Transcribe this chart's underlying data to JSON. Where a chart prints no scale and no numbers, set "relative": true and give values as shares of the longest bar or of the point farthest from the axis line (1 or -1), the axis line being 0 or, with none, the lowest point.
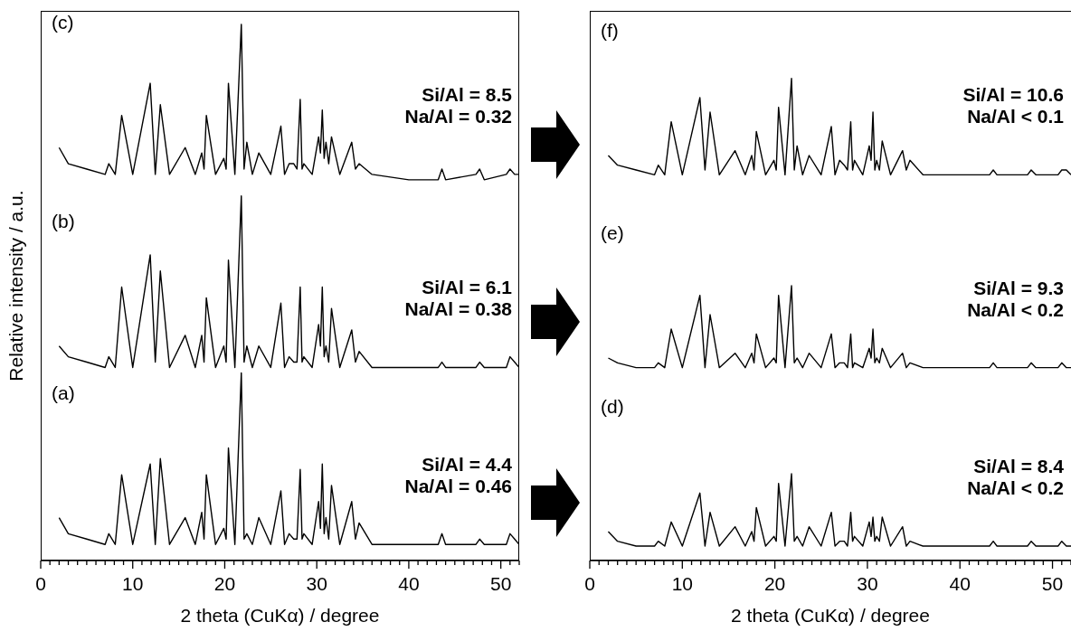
{
  "chart_data": [
    {
      "type": "line",
      "relative": true,
      "xlim": [
        0,
        52
      ],
      "xticks": [
        0,
        {
          "value": 1,
          "label": null
        },
        {
          "value": 2,
          "label": null
        },
        {
          "value": 3,
          "label": null
        },
        {
          "value": 4,
          "label": null
        },
        {
          "value": 5,
          "label": null
        },
        {
          "value": 6,
          "label": null
        },
        {
          "value": 7,
          "label": null
        },
        {
          "value": 8,
          "label": null
        },
        {
          "value": 9,
          "label": null
        },
        10,
        {
          "value": 11,
          "label": null
        },
        {
          "value": 12,
          "label": null
        },
        {
          "value": 13,
          "label": null
        },
        {
          "value": 14,
          "label": null
        },
        {
          "value": 15,
          "label": null
        },
        {
          "value": 16,
          "label": null
        },
        {
          "value": 17,
          "label": null
        },
        {
          "value": 18,
          "label": null
        },
        {
          "value": 19,
          "label": null
        },
        20,
        {
          "value": 21,
          "label": null
        },
        {
          "value": 22,
          "label": null
        },
        {
          "value": 23,
          "label": null
        },
        {
          "value": 24,
          "label": null
        },
        {
          "value": 25,
          "label": null
        },
        {
          "value": 26,
          "label": null
        },
        {
          "value": 27,
          "label": null
        },
        {
          "value": 28,
          "label": null
        },
        {
          "value": 29,
          "label": null
        },
        30,
        {
          "value": 31,
          "label": null
        },
        {
          "value": 32,
          "label": null
        },
        {
          "value": 33,
          "label": null
        },
        {
          "value": 34,
          "label": null
        },
        {
          "value": 35,
          "label": null
        },
        {
          "value": 36,
          "label": null
        },
        {
          "value": 37,
          "label": null
        },
        {
          "value": 38,
          "label": null
        },
        {
          "value": 39,
          "label": null
        },
        40,
        {
          "value": 41,
          "label": null
        },
        {
          "value": 42,
          "label": null
        },
        {
          "value": 43,
          "label": null
        },
        {
          "value": 44,
          "label": null
        },
        {
          "value": 45,
          "label": null
        },
        {
          "value": 46,
          "label": null
        },
        {
          "value": 47,
          "label": null
        },
        {
          "value": 48,
          "label": null
        },
        {
          "value": 49,
          "label": null
        },
        50,
        {
          "value": 51,
          "label": null
        },
        {
          "value": 52,
          "label": null
        }
      ],
      "xlabel": "2 theta (CuKα) / degree",
      "ylabel": "Relative intensity / a.u.",
      "x": [
        2,
        3,
        5,
        7,
        7.4,
        8.1,
        8.8,
        10,
        11.9,
        12.45,
        13.0,
        14,
        15.7,
        16.8,
        17.5,
        17.75,
        18.0,
        19,
        19.9,
        20.15,
        20.4,
        21.1,
        21.8,
        22.1,
        22.4,
        23,
        23.7,
        25,
        26.1,
        26.5,
        27.0,
        27.5,
        27.85,
        28.2,
        28.4,
        28.6,
        29.5,
        30.2,
        30.4,
        30.6,
        30.8,
        31.0,
        31.3,
        31.6,
        32.5,
        33.8,
        34.2,
        34.6,
        36,
        40,
        43.2,
        43.6,
        44,
        47.3,
        47.7,
        48.2,
        50.6,
        51,
        51.5,
        52
      ],
      "series": [
        {
          "color": "#000000",
          "values": [
            0.77,
            0.74,
            0.73,
            0.72,
            0.74,
            0.72,
            0.83,
            0.72,
            0.89,
            0.72,
            0.85,
            0.72,
            0.77,
            0.72,
            0.76,
            0.73,
            0.83,
            0.72,
            0.75,
            0.73,
            0.89,
            0.72,
            1.0,
            0.73,
            0.78,
            0.72,
            0.76,
            0.72,
            0.81,
            0.72,
            0.74,
            0.74,
            0.73,
            0.86,
            0.73,
            0.74,
            0.72,
            0.79,
            0.76,
            0.84,
            0.75,
            0.78,
            0.74,
            0.79,
            0.72,
            0.78,
            0.73,
            0.74,
            0.72,
            0.71,
            0.71,
            0.73,
            0.71,
            0.72,
            0.73,
            0.71,
            0.72,
            0.73,
            0.72,
            0.72
          ]
        },
        {
          "color": "#000000",
          "values": [
            0.4,
            0.38,
            0.37,
            0.36,
            0.38,
            0.36,
            0.51,
            0.36,
            0.57,
            0.37,
            0.54,
            0.36,
            0.42,
            0.36,
            0.42,
            0.37,
            0.49,
            0.36,
            0.4,
            0.37,
            0.56,
            0.36,
            0.68,
            0.37,
            0.4,
            0.36,
            0.4,
            0.36,
            0.48,
            0.36,
            0.38,
            0.37,
            0.37,
            0.51,
            0.37,
            0.38,
            0.36,
            0.44,
            0.4,
            0.51,
            0.38,
            0.4,
            0.37,
            0.47,
            0.36,
            0.43,
            0.37,
            0.39,
            0.36,
            0.36,
            0.36,
            0.37,
            0.36,
            0.36,
            0.37,
            0.36,
            0.36,
            0.38,
            0.37,
            0.36
          ]
        },
        {
          "color": "#000000",
          "values": [
            0.08,
            0.05,
            0.04,
            0.03,
            0.05,
            0.03,
            0.16,
            0.03,
            0.18,
            0.03,
            0.19,
            0.03,
            0.08,
            0.03,
            0.09,
            0.04,
            0.16,
            0.03,
            0.06,
            0.04,
            0.21,
            0.03,
            0.35,
            0.04,
            0.05,
            0.03,
            0.08,
            0.03,
            0.13,
            0.03,
            0.05,
            0.04,
            0.04,
            0.17,
            0.04,
            0.05,
            0.03,
            0.11,
            0.06,
            0.18,
            0.05,
            0.08,
            0.04,
            0.14,
            0.03,
            0.11,
            0.04,
            0.07,
            0.03,
            0.03,
            0.03,
            0.05,
            0.03,
            0.03,
            0.04,
            0.03,
            0.03,
            0.05,
            0.04,
            0.03
          ]
        }
      ],
      "annotations": [
        "(c)",
        "Si/Al = 8.5",
        "Na/Al = 0.32",
        "(b)",
        "Si/Al = 6.1",
        "Na/Al = 0.38",
        "(a)",
        "Si/Al = 4.4",
        "Na/Al = 0.46"
      ]
    },
    {
      "type": "line",
      "relative": true,
      "xlim": [
        0,
        52
      ],
      "xticks": [
        0,
        {
          "value": 1,
          "label": null
        },
        {
          "value": 2,
          "label": null
        },
        {
          "value": 3,
          "label": null
        },
        {
          "value": 4,
          "label": null
        },
        {
          "value": 5,
          "label": null
        },
        {
          "value": 6,
          "label": null
        },
        {
          "value": 7,
          "label": null
        },
        {
          "value": 8,
          "label": null
        },
        {
          "value": 9,
          "label": null
        },
        10,
        {
          "value": 11,
          "label": null
        },
        {
          "value": 12,
          "label": null
        },
        {
          "value": 13,
          "label": null
        },
        {
          "value": 14,
          "label": null
        },
        {
          "value": 15,
          "label": null
        },
        {
          "value": 16,
          "label": null
        },
        {
          "value": 17,
          "label": null
        },
        {
          "value": 18,
          "label": null
        },
        {
          "value": 19,
          "label": null
        },
        20,
        {
          "value": 21,
          "label": null
        },
        {
          "value": 22,
          "label": null
        },
        {
          "value": 23,
          "label": null
        },
        {
          "value": 24,
          "label": null
        },
        {
          "value": 25,
          "label": null
        },
        {
          "value": 26,
          "label": null
        },
        {
          "value": 27,
          "label": null
        },
        {
          "value": 28,
          "label": null
        },
        {
          "value": 29,
          "label": null
        },
        30,
        {
          "value": 31,
          "label": null
        },
        {
          "value": 32,
          "label": null
        },
        {
          "value": 33,
          "label": null
        },
        {
          "value": 34,
          "label": null
        },
        {
          "value": 35,
          "label": null
        },
        {
          "value": 36,
          "label": null
        },
        {
          "value": 37,
          "label": null
        },
        {
          "value": 38,
          "label": null
        },
        {
          "value": 39,
          "label": null
        },
        40,
        {
          "value": 41,
          "label": null
        },
        {
          "value": 42,
          "label": null
        },
        {
          "value": 43,
          "label": null
        },
        {
          "value": 44,
          "label": null
        },
        {
          "value": 45,
          "label": null
        },
        {
          "value": 46,
          "label": null
        },
        {
          "value": 47,
          "label": null
        },
        {
          "value": 48,
          "label": null
        },
        {
          "value": 49,
          "label": null
        },
        50,
        {
          "value": 51,
          "label": null
        },
        {
          "value": 52,
          "label": null
        }
      ],
      "xlabel": "2 theta (CuKα) / degree",
      "x": [
        2,
        3,
        5,
        7,
        7.4,
        8.1,
        8.8,
        10,
        11.9,
        12.45,
        13.0,
        14,
        15.7,
        16.8,
        17.5,
        17.75,
        18.0,
        19,
        19.9,
        20.15,
        20.4,
        21.1,
        21.8,
        22.1,
        22.4,
        23,
        23.7,
        25,
        26.1,
        26.5,
        27.0,
        27.5,
        27.85,
        28.2,
        28.4,
        28.6,
        29.5,
        30.2,
        30.4,
        30.6,
        30.8,
        31.0,
        31.3,
        31.6,
        32.5,
        33.8,
        34.2,
        34.6,
        36,
        40,
        43.2,
        43.6,
        44,
        47.3,
        47.7,
        48.2,
        50.6,
        51,
        51.5,
        52
      ],
      "series": [
        {
          "color": "#000000",
          "values": [
            0.84,
            0.82,
            0.81,
            0.8,
            0.82,
            0.8,
            0.91,
            0.8,
            0.96,
            0.81,
            0.93,
            0.8,
            0.85,
            0.8,
            0.84,
            0.81,
            0.89,
            0.8,
            0.83,
            0.81,
            0.94,
            0.8,
            1.0,
            0.81,
            0.86,
            0.8,
            0.84,
            0.8,
            0.9,
            0.8,
            0.83,
            0.82,
            0.81,
            0.91,
            0.81,
            0.83,
            0.8,
            0.86,
            0.83,
            0.93,
            0.81,
            0.83,
            0.81,
            0.87,
            0.8,
            0.85,
            0.81,
            0.83,
            0.8,
            0.8,
            0.8,
            0.81,
            0.8,
            0.8,
            0.81,
            0.8,
            0.8,
            0.81,
            0.81,
            0.8
          ]
        },
        {
          "color": "#000000",
          "values": [
            0.42,
            0.41,
            0.4,
            0.4,
            0.41,
            0.4,
            0.48,
            0.4,
            0.55,
            0.4,
            0.51,
            0.4,
            0.43,
            0.4,
            0.43,
            0.41,
            0.47,
            0.4,
            0.42,
            0.41,
            0.55,
            0.4,
            0.57,
            0.41,
            0.42,
            0.4,
            0.43,
            0.4,
            0.47,
            0.4,
            0.41,
            0.41,
            0.4,
            0.47,
            0.4,
            0.41,
            0.4,
            0.44,
            0.42,
            0.48,
            0.41,
            0.42,
            0.41,
            0.44,
            0.4,
            0.43,
            0.4,
            0.41,
            0.4,
            0.4,
            0.4,
            0.41,
            0.4,
            0.4,
            0.41,
            0.4,
            0.4,
            0.41,
            0.4,
            0.4
          ]
        },
        {
          "color": "#000000",
          "values": [
            0.06,
            0.04,
            0.03,
            0.03,
            0.04,
            0.03,
            0.08,
            0.03,
            0.14,
            0.03,
            0.1,
            0.03,
            0.07,
            0.03,
            0.06,
            0.04,
            0.11,
            0.03,
            0.05,
            0.04,
            0.16,
            0.03,
            0.18,
            0.04,
            0.05,
            0.03,
            0.07,
            0.03,
            0.1,
            0.03,
            0.04,
            0.04,
            0.03,
            0.1,
            0.04,
            0.05,
            0.03,
            0.08,
            0.05,
            0.09,
            0.04,
            0.05,
            0.04,
            0.09,
            0.03,
            0.07,
            0.03,
            0.04,
            0.03,
            0.03,
            0.03,
            0.04,
            0.03,
            0.03,
            0.04,
            0.03,
            0.03,
            0.04,
            0.03,
            0.03
          ]
        }
      ],
      "annotations": [
        "(f)",
        "Si/Al = 10.6",
        "Na/Al < 0.1",
        "(e)",
        "Si/Al = 9.3",
        "Na/Al < 0.2",
        "(d)",
        "Si/Al = 8.4",
        "Na/Al < 0.2"
      ]
    }
  ]
}
